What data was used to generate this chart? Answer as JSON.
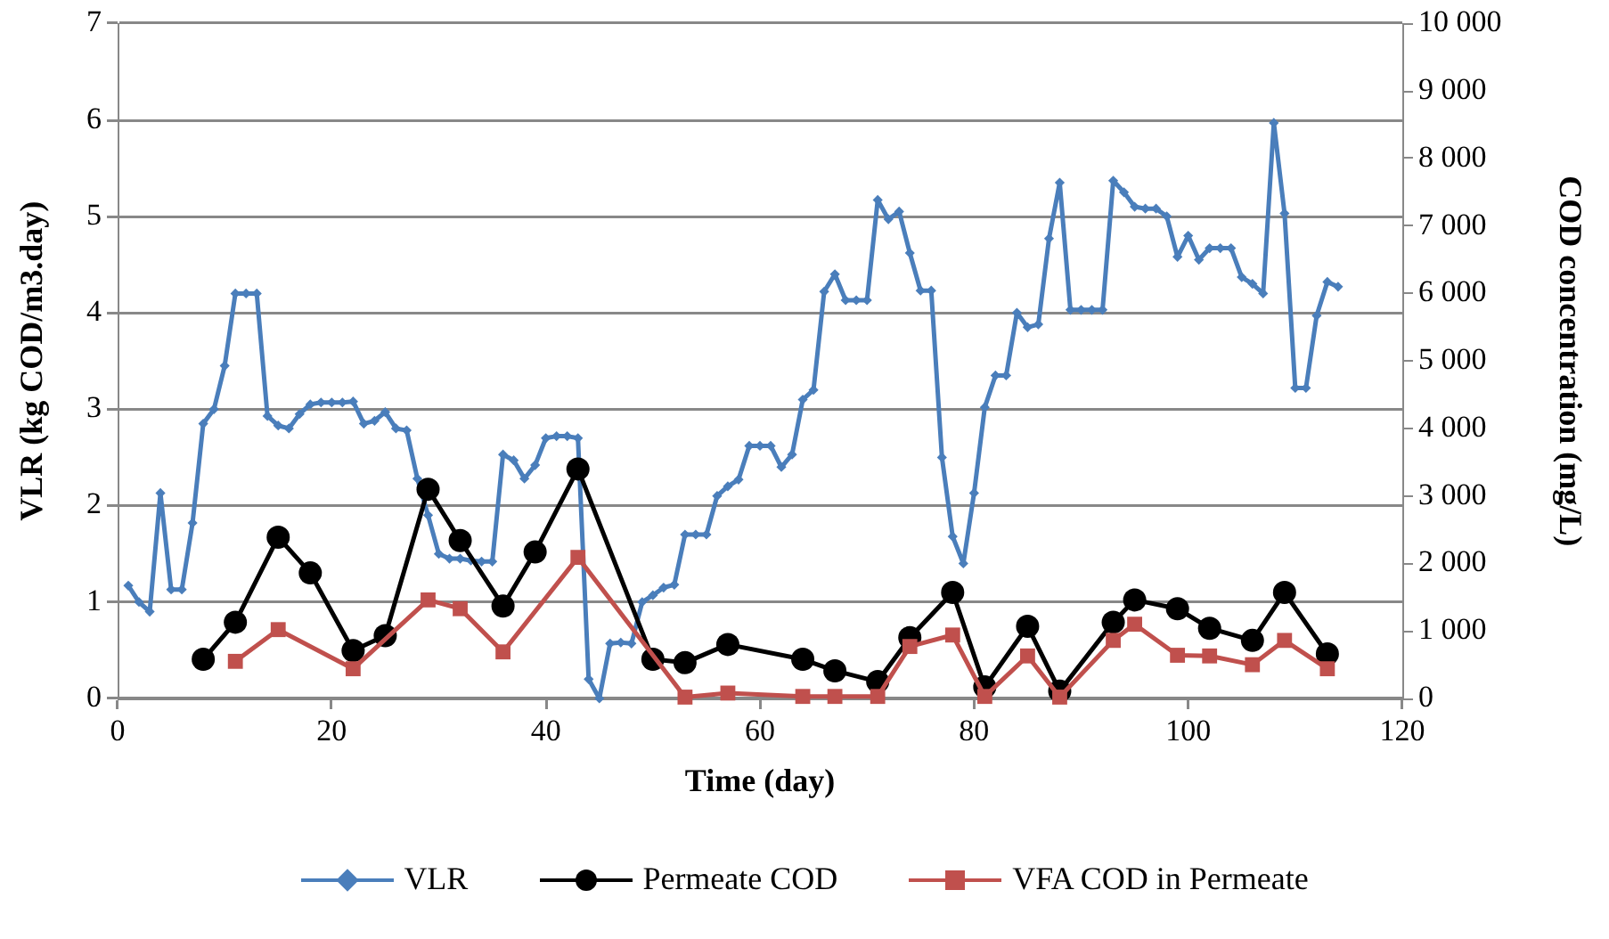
{
  "chart_data": {
    "type": "line",
    "xlabel": "Time (day)",
    "ylabel": "VLR (kg COD/m3.day)",
    "y2label": "COD concentration (mg/L)",
    "xlim": [
      0,
      120
    ],
    "xticks": [
      0,
      20,
      40,
      60,
      80,
      100,
      120
    ],
    "ylim": [
      0,
      7
    ],
    "yticks": [
      0,
      1,
      2,
      3,
      4,
      5,
      6,
      7
    ],
    "y2lim": [
      0,
      10000
    ],
    "y2ticks": [
      0,
      {
        "value": 1000,
        "label": "1 000"
      },
      {
        "value": 2000,
        "label": "2 000"
      },
      {
        "value": 3000,
        "label": "3 000"
      },
      {
        "value": 4000,
        "label": "4 000"
      },
      {
        "value": 5000,
        "label": "5 000"
      },
      {
        "value": 6000,
        "label": "6 000"
      },
      {
        "value": 7000,
        "label": "7 000"
      },
      {
        "value": 8000,
        "label": "8 000"
      },
      {
        "value": 9000,
        "label": "9 000"
      },
      {
        "value": 10000,
        "label": "10 000"
      }
    ],
    "grid": "y",
    "legend": "bottom",
    "line_style": "solid",
    "series": [
      {
        "name": "VLR",
        "color": "#4a7ebb",
        "marker": "diamond",
        "x": [
          1,
          2,
          3,
          4,
          5,
          6,
          7,
          8,
          9,
          10,
          11,
          12,
          13,
          14,
          15,
          16,
          17,
          18,
          19,
          20,
          21,
          22,
          23,
          24,
          25,
          26,
          27,
          28,
          29,
          30,
          31,
          32,
          33,
          34,
          35,
          36,
          37,
          38,
          39,
          40,
          41,
          42,
          43,
          44,
          45,
          46,
          47,
          48,
          49,
          50,
          51,
          52,
          53,
          54,
          55,
          56,
          57,
          58,
          59,
          60,
          61,
          62,
          63,
          64,
          65,
          66,
          67,
          68,
          69,
          70,
          71,
          72,
          73,
          74,
          75,
          76,
          77,
          78,
          79,
          80,
          81,
          82,
          83,
          84,
          85,
          86,
          87,
          88,
          89,
          90,
          91,
          92,
          93,
          94,
          95,
          96,
          97,
          98,
          99,
          100,
          101,
          102,
          103,
          104,
          105,
          106,
          107,
          108,
          109,
          110,
          111,
          112,
          113,
          114
        ],
        "values": [
          1.17,
          1.0,
          0.9,
          2.13,
          1.13,
          1.13,
          1.82,
          2.85,
          3.0,
          3.45,
          4.2,
          4.2,
          4.2,
          2.93,
          2.83,
          2.8,
          2.95,
          3.05,
          3.07,
          3.07,
          3.07,
          3.08,
          2.85,
          2.88,
          2.97,
          2.8,
          2.78,
          2.28,
          1.9,
          1.5,
          1.45,
          1.45,
          1.43,
          1.42,
          1.42,
          2.53,
          2.47,
          2.28,
          2.42,
          2.7,
          2.72,
          2.72,
          2.7,
          0.2,
          0.0,
          0.57,
          0.58,
          0.57,
          1.0,
          1.07,
          1.15,
          1.18,
          1.7,
          1.7,
          1.7,
          2.1,
          2.2,
          2.27,
          2.62,
          2.62,
          2.62,
          2.4,
          2.53,
          3.1,
          3.2,
          4.22,
          4.4,
          4.13,
          4.13,
          4.13,
          5.17,
          4.97,
          5.05,
          4.62,
          4.23,
          4.23,
          2.5,
          1.68,
          1.4,
          2.13,
          3.02,
          3.35,
          3.35,
          4.0,
          3.85,
          3.88,
          4.77,
          5.35,
          4.03,
          4.03,
          4.03,
          4.03,
          5.37,
          5.25,
          5.1,
          5.08,
          5.08,
          5.0,
          4.58,
          4.8,
          4.55,
          4.67,
          4.67,
          4.67,
          4.37,
          4.3,
          4.2,
          5.97,
          5.03,
          3.22,
          3.22,
          3.97,
          4.32,
          4.27
        ]
      },
      {
        "name": "Permeate COD",
        "color": "#000000",
        "marker": "circle",
        "axis": "y2",
        "x": [
          8,
          11,
          15,
          18,
          22,
          25,
          29,
          32,
          36,
          39,
          43,
          50,
          53,
          57,
          64,
          67,
          71,
          74,
          78,
          81,
          85,
          88,
          93,
          95,
          99,
          102,
          106,
          109,
          113
        ],
        "values": [
          580,
          1130,
          2390,
          1860,
          710,
          930,
          3100,
          2340,
          1370,
          2170,
          3400,
          580,
          530,
          800,
          580,
          410,
          250,
          900,
          1570,
          170,
          1070,
          110,
          1130,
          1460,
          1330,
          1040,
          860,
          1570,
          660
        ]
      },
      {
        "name": "VFA COD in Permeate",
        "color": "#c0504d",
        "marker": "square",
        "axis": "y2",
        "x": [
          11,
          15,
          22,
          29,
          32,
          36,
          43,
          53,
          57,
          64,
          67,
          71,
          74,
          78,
          81,
          85,
          88,
          93,
          95,
          99,
          102,
          106,
          109,
          113
        ],
        "values": [
          550,
          1020,
          440,
          1460,
          1330,
          690,
          2090,
          20,
          80,
          30,
          30,
          30,
          770,
          940,
          30,
          630,
          20,
          860,
          1100,
          640,
          630,
          500,
          860,
          440
        ]
      }
    ]
  }
}
